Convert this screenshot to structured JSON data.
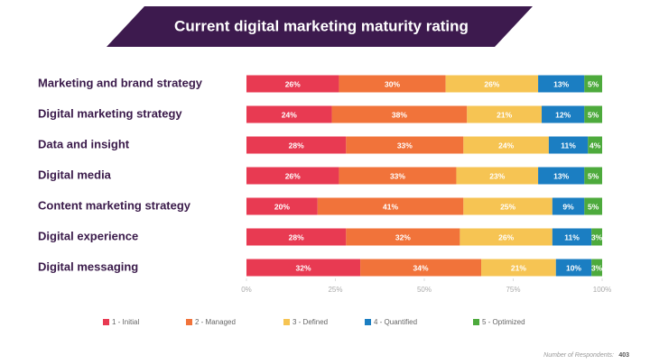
{
  "chart_data": {
    "type": "stacked-bar-horizontal",
    "title": "Current digital marketing maturity rating",
    "categories": [
      "Marketing and brand strategy",
      "Digital marketing strategy",
      "Data and insight",
      "Digital media",
      "Content marketing strategy",
      "Digital experience",
      "Digital messaging"
    ],
    "series": [
      {
        "name": "1 - Initial",
        "color": "#e83a52",
        "values": [
          26,
          24,
          28,
          26,
          20,
          28,
          32
        ],
        "value_labels": [
          "26%",
          "24%",
          "28%",
          "26%",
          "20%",
          "28%",
          "32%"
        ]
      },
      {
        "name": "2 - Managed",
        "color": "#f1733a",
        "values": [
          30,
          38,
          33,
          33,
          41,
          32,
          34
        ],
        "value_labels": [
          "30%",
          "38%",
          "33%",
          "33%",
          "41%",
          "32%",
          "34%"
        ]
      },
      {
        "name": "3 - Defined",
        "color": "#f6c453",
        "values": [
          26,
          21,
          24,
          23,
          25,
          26,
          21
        ],
        "value_labels": [
          "26%",
          "21%",
          "24%",
          "23%",
          "25%",
          "26%",
          "21%"
        ]
      },
      {
        "name": "4 - Quantified",
        "color": "#1b7ec2",
        "values": [
          13,
          12,
          11,
          13,
          9,
          11,
          10
        ],
        "value_labels": [
          "13%",
          "12%",
          "11%",
          "13%",
          "9%",
          "11%",
          "10%"
        ]
      },
      {
        "name": "5 - Optimized",
        "color": "#4daa3c",
        "values": [
          5,
          5,
          4,
          5,
          5,
          3,
          3
        ],
        "value_labels": [
          "5%",
          "5%",
          "4%",
          "5%",
          "5%",
          "3%",
          "3%"
        ]
      }
    ],
    "xlim": [
      0,
      100
    ],
    "xticks": [
      {
        "value": 0,
        "label": "0%"
      },
      {
        "value": 25,
        "label": "25%"
      },
      {
        "value": 50,
        "label": "50%"
      },
      {
        "value": 75,
        "label": "75%"
      },
      {
        "value": 100,
        "label": "100%"
      }
    ],
    "footnote": "Number of Respondents:",
    "respondents": 403
  }
}
